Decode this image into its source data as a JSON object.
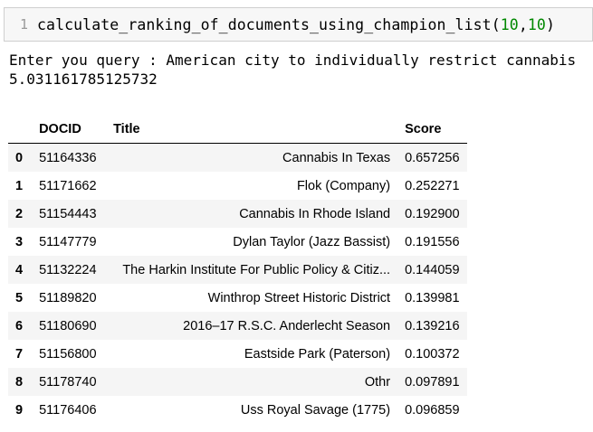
{
  "code_cell": {
    "line_number": "1",
    "func_name": "calculate_ranking_of_documents_using_champion_list",
    "open_paren": "(",
    "arg1": "10",
    "comma": ",",
    "arg2": "10",
    "close_paren": ")"
  },
  "output": {
    "query_line": "Enter you query : American city to individually restrict cannabis",
    "time_value": "5.031161785125732"
  },
  "table": {
    "headers": {
      "index": "",
      "docid": "DOCID",
      "title": "Title",
      "score": "Score"
    },
    "rows": [
      {
        "index": "0",
        "docid": "51164336",
        "title": "Cannabis In Texas",
        "score": "0.657256"
      },
      {
        "index": "1",
        "docid": "51171662",
        "title": "Flok (Company)",
        "score": "0.252271"
      },
      {
        "index": "2",
        "docid": "51154443",
        "title": "Cannabis In Rhode Island",
        "score": "0.192900"
      },
      {
        "index": "3",
        "docid": "51147779",
        "title": "Dylan Taylor (Jazz Bassist)",
        "score": "0.191556"
      },
      {
        "index": "4",
        "docid": "51132224",
        "title": "The Harkin Institute For Public Policy & Citiz...",
        "score": "0.144059"
      },
      {
        "index": "5",
        "docid": "51189820",
        "title": "Winthrop Street Historic District",
        "score": "0.139981"
      },
      {
        "index": "6",
        "docid": "51180690",
        "title": "2016–17 R.S.C. Anderlecht Season",
        "score": "0.139216"
      },
      {
        "index": "7",
        "docid": "51156800",
        "title": "Eastside Park (Paterson)",
        "score": "0.100372"
      },
      {
        "index": "8",
        "docid": "51178740",
        "title": "Othr",
        "score": "0.097891"
      },
      {
        "index": "9",
        "docid": "51176406",
        "title": "Uss Royal Savage (1775)",
        "score": "0.096859"
      }
    ]
  }
}
